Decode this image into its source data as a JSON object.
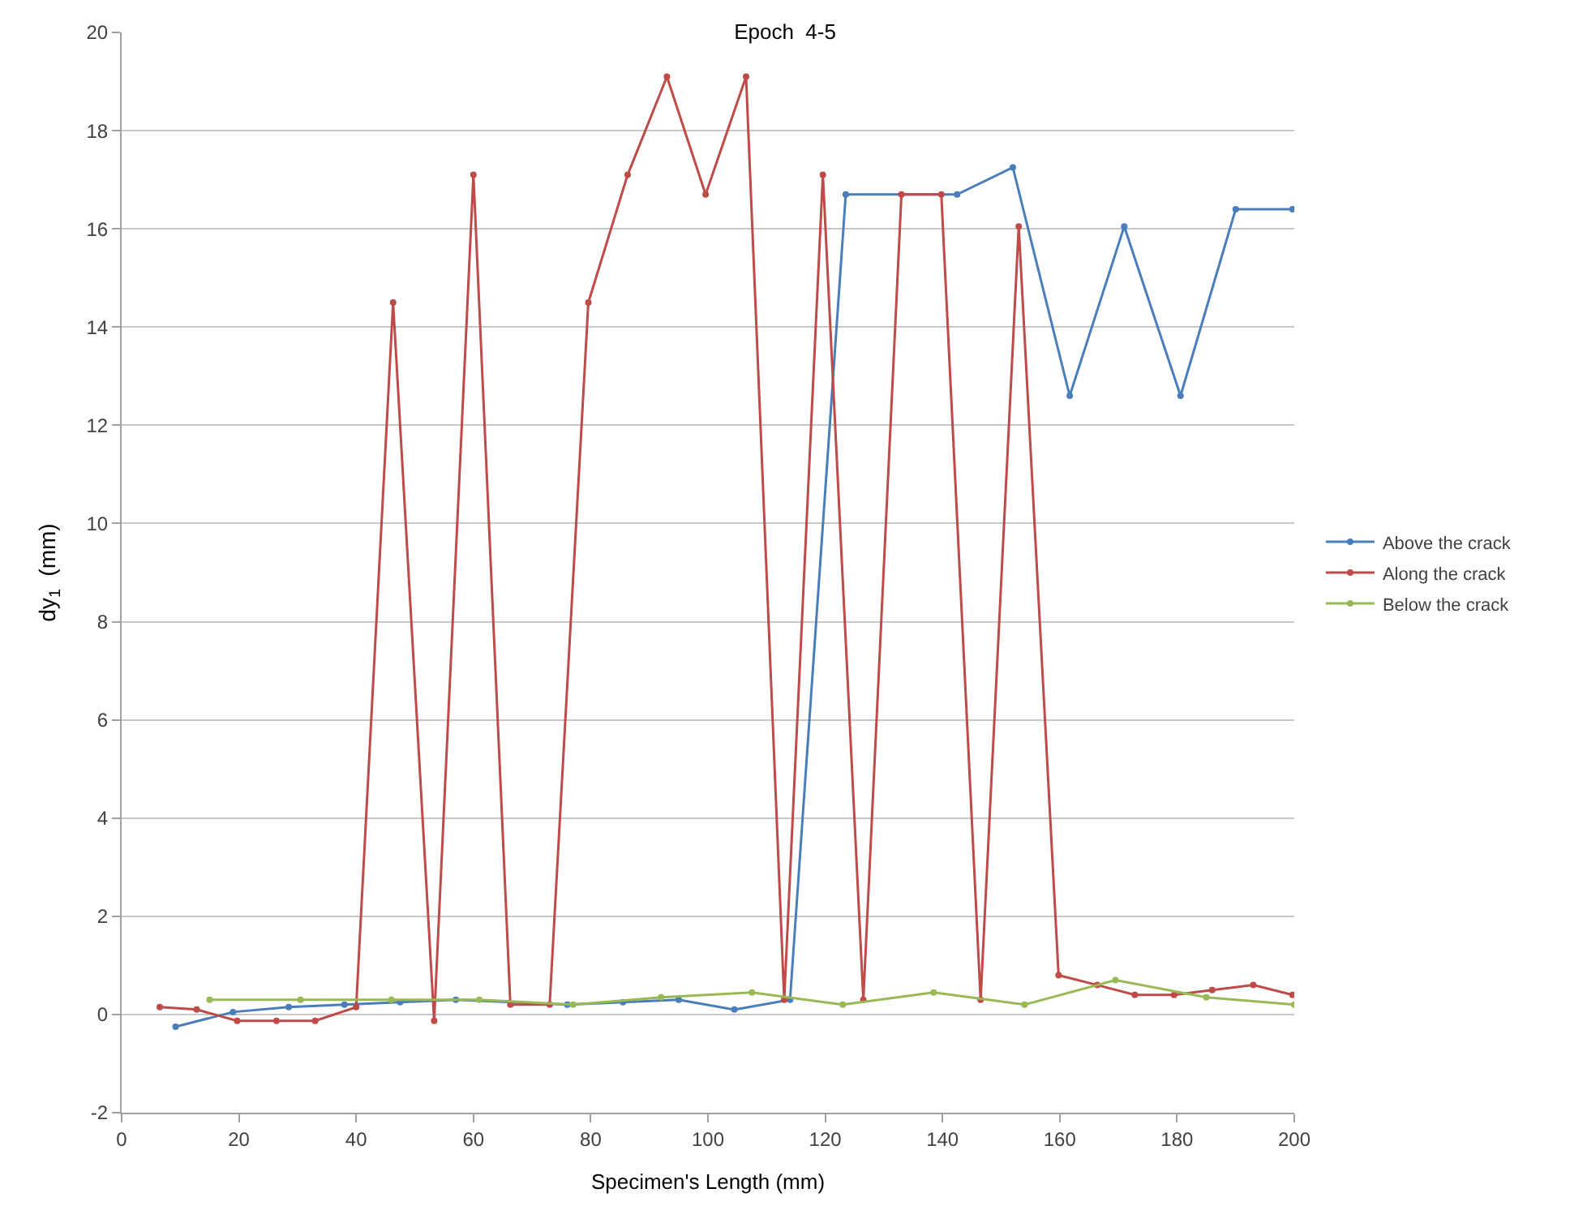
{
  "chart_data": {
    "type": "line",
    "title": "Epoch  4-5",
    "xlabel": "Specimen's Length (mm)",
    "ylabel": "dy$_{1}$  (mm)",
    "xlim": [
      0,
      200
    ],
    "xticks": [
      0,
      20,
      40,
      60,
      80,
      100,
      120,
      140,
      160,
      180,
      200
    ],
    "ylim": [
      -2,
      20
    ],
    "yticks": [
      -2,
      0,
      2,
      4,
      6,
      8,
      10,
      12,
      14,
      16,
      18,
      20
    ],
    "grid": "y",
    "legend": "right",
    "marker": "circle",
    "line_style": "solid",
    "series": [
      {
        "name": "Above the crack",
        "color": "#4a7ebb",
        "x": [
          9.2,
          19,
          28.5,
          38,
          47.5,
          57,
          76,
          85.5,
          95,
          104.5,
          114,
          123.5,
          142.5,
          152,
          161.7,
          171,
          180.6,
          190,
          199.7
        ],
        "values": [
          -0.25,
          0.05,
          0.15,
          0.2,
          0.25,
          0.3,
          0.2,
          0.25,
          0.3,
          0.1,
          0.3,
          16.7,
          16.7,
          17.25,
          12.6,
          16.05,
          12.6,
          16.4,
          16.4
        ]
      },
      {
        "name": "Along the crack",
        "color": "#be4b48",
        "x": [
          6.5,
          12.8,
          19.7,
          26.4,
          33,
          40,
          46.3,
          53.3,
          60,
          66.3,
          73,
          79.6,
          86.3,
          93,
          99.6,
          106.5,
          113,
          119.6,
          126.5,
          133,
          139.8,
          146.5,
          153,
          159.8,
          166.4,
          172.8,
          179.5,
          186,
          193,
          199.7
        ],
        "values": [
          0.15,
          0.1,
          -0.13,
          -0.13,
          -0.13,
          0.15,
          14.5,
          -0.13,
          17.1,
          0.2,
          0.2,
          14.5,
          17.1,
          19.1,
          16.7,
          19.1,
          0.3,
          17.1,
          0.3,
          16.7,
          16.7,
          0.3,
          16.05,
          0.8,
          0.6,
          0.4,
          0.4,
          0.5,
          0.6,
          0.4
        ]
      },
      {
        "name": "Below the crack",
        "color": "#98b954",
        "x": [
          15,
          30.5,
          46,
          61,
          77,
          92,
          107.5,
          123,
          138.5,
          154,
          169.5,
          185,
          200
        ],
        "values": [
          0.3,
          0.3,
          0.3,
          0.3,
          0.2,
          0.35,
          0.45,
          0.2,
          0.45,
          0.2,
          0.7,
          0.35,
          0.2
        ]
      }
    ]
  }
}
